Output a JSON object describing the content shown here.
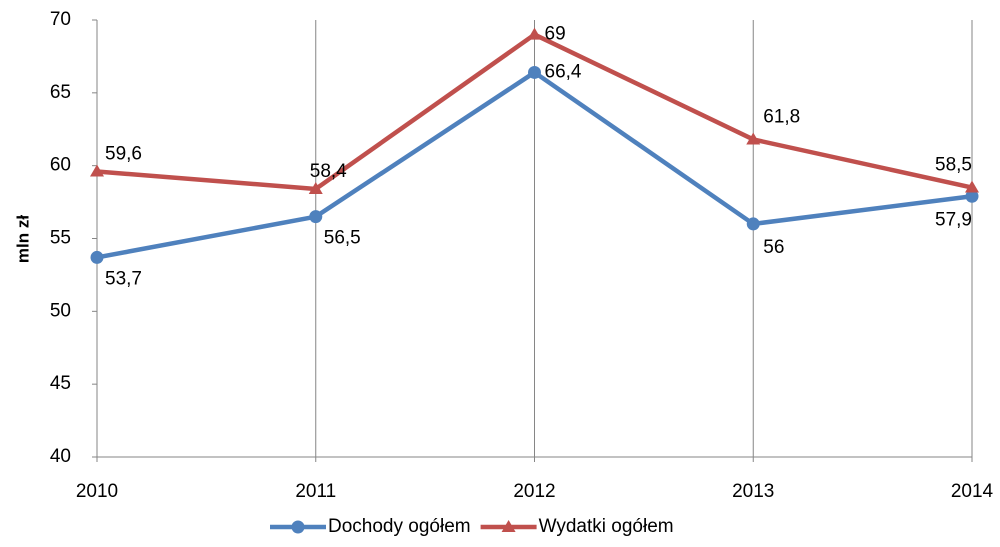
{
  "chart_data": {
    "type": "line",
    "ylabel": "mln zł",
    "categories": [
      "2010",
      "2011",
      "2012",
      "2013",
      "2014"
    ],
    "series": [
      {
        "name": "Dochody ogółem",
        "color": "#4f81bd",
        "marker": "circle",
        "values": [
          53.7,
          56.5,
          66.4,
          56,
          57.9
        ],
        "value_labels": [
          "53,7",
          "56,5",
          "66,4",
          "56",
          "57,9"
        ]
      },
      {
        "name": "Wydatki ogółem",
        "color": "#c0504d",
        "marker": "triangle",
        "values": [
          59.6,
          58.4,
          69,
          61.8,
          58.5
        ],
        "value_labels": [
          "59,6",
          "58,4",
          "69",
          "61,8",
          "58,5"
        ]
      }
    ],
    "ylim": [
      40,
      70
    ],
    "yticks": [
      40,
      45,
      50,
      55,
      60,
      65,
      70
    ],
    "grid": "vertical",
    "legend": "bottom"
  }
}
